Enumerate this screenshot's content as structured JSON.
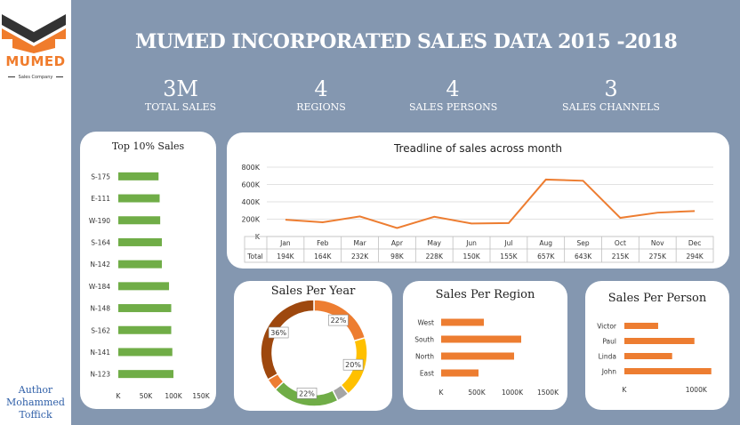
{
  "sidebar": {
    "brand": "MUMED",
    "tagline": "Sales Company",
    "author_line1": "Author",
    "author_line2": "Mohammed",
    "author_line3": "Toffick"
  },
  "header": {
    "title": "MUMED INCORPORATED SALES DATA  2015 -2018"
  },
  "kpis": [
    {
      "value": "3M",
      "label": "TOTAL SALES"
    },
    {
      "value": "4",
      "label": "REGIONS"
    },
    {
      "value": "4",
      "label": "SALES PERSONS"
    },
    {
      "value": "3",
      "label": "SALES CHANNELS"
    }
  ],
  "colors": {
    "panel_bg": "#8497b0",
    "green": "#70ad47",
    "orange": "#ed7d31",
    "gold": "#ffc000",
    "brown": "#9e480e",
    "author": "#2f5fa8"
  },
  "chart_data": [
    {
      "id": "top10",
      "type": "bar",
      "orientation": "horizontal",
      "title": "Top 10% Sales",
      "categories": [
        "S-175",
        "E-111",
        "W-190",
        "S-164",
        "N-142",
        "W-184",
        "N-148",
        "S-162",
        "N-141",
        "N-123"
      ],
      "values": [
        73000,
        75000,
        76000,
        79000,
        79000,
        92000,
        96000,
        96000,
        98000,
        100000
      ],
      "xlim": [
        0,
        150000
      ],
      "ticks": [
        0,
        50000,
        100000,
        150000
      ],
      "tick_labels": [
        "K",
        "50K",
        "100K",
        "150K"
      ]
    },
    {
      "id": "trend",
      "type": "line",
      "title": "Treadline of sales across month",
      "categories": [
        "Jan",
        "Feb",
        "Mar",
        "Apr",
        "May",
        "Jun",
        "Jul",
        "Aug",
        "Sep",
        "Oct",
        "Nov",
        "Dec"
      ],
      "values": [
        194000,
        164000,
        232000,
        98000,
        228000,
        150000,
        155000,
        657000,
        643000,
        215000,
        275000,
        294000
      ],
      "ylim": [
        0,
        800000
      ],
      "yticks": [
        0,
        200000,
        400000,
        600000,
        800000
      ],
      "ytick_labels": [
        "K",
        "200K",
        "400K",
        "600K",
        "800K"
      ],
      "table_row_label": "Total",
      "table_values": [
        "194K",
        "164K",
        "232K",
        "98K",
        "228K",
        "150K",
        "155K",
        "657K",
        "643K",
        "215K",
        "275K",
        "294K"
      ],
      "grid": true
    },
    {
      "id": "year",
      "type": "pie",
      "donut": true,
      "title": "Sales Per Year",
      "values": [
        22,
        20,
        22,
        36
      ],
      "labels": [
        "22%",
        "20%",
        "22%",
        "36%"
      ],
      "colors": [
        "#ed7d31",
        "#ffc000",
        "#70ad47",
        "#9e480e"
      ],
      "minor_slices": [
        {
          "after_index": 1,
          "value": 4,
          "color": "#a5a5a5"
        },
        {
          "after_index": 2,
          "value": 4,
          "color": "#ed7d31"
        }
      ]
    },
    {
      "id": "region",
      "type": "bar",
      "orientation": "horizontal",
      "title": "Sales Per Region",
      "categories": [
        "West",
        "South",
        "North",
        "East"
      ],
      "values": [
        600000,
        1125000,
        1025000,
        525000
      ],
      "xlim": [
        0,
        1500000
      ],
      "ticks": [
        0,
        500000,
        1000000,
        1500000
      ],
      "tick_labels": [
        "K",
        "500K",
        "1000K",
        "1500K"
      ]
    },
    {
      "id": "person",
      "type": "bar",
      "orientation": "horizontal",
      "title": "Sales Per Person",
      "categories": [
        "Victor",
        "Paul",
        "Linda",
        "John"
      ],
      "values": [
        470000,
        975000,
        665000,
        1210000
      ],
      "xlim": [
        0,
        1300000
      ],
      "ticks": [
        0,
        1000000
      ],
      "tick_labels": [
        "K",
        "1000K"
      ]
    }
  ]
}
